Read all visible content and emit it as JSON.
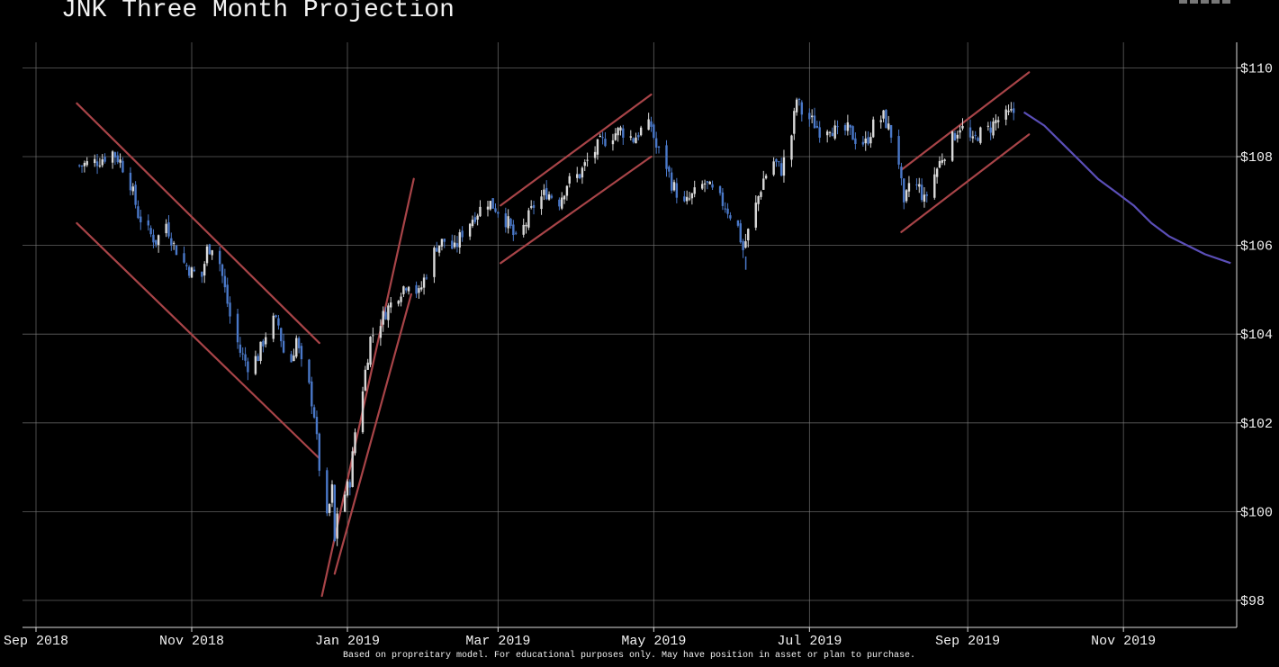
{
  "title": "JNK Three Month Projection",
  "footer": "Based on propreitary model. For educational purposes only. May have position in asset or plan to purchase.",
  "toolbar_icons": [
    "zoom-icon",
    "pan-icon",
    "home-icon",
    "settings-icon",
    "save-icon"
  ],
  "colors": {
    "background": "#000000",
    "up_candle": "#d9d9d9",
    "down_candle": "#4a78c8",
    "trendline": "#a84448",
    "projection": "#5b4fb8",
    "grid": "#808080"
  },
  "chart_data": {
    "type": "candlestick",
    "title": "JNK Three Month Projection",
    "xlabel": "",
    "ylabel": "",
    "x_range": [
      "2018-09-01",
      "2019-12-15"
    ],
    "ylim": [
      97.4,
      110.5
    ],
    "grid": true,
    "y_axis_position": "right",
    "x_ticks": [
      {
        "date": "2018-09-01",
        "label": "Sep 2018"
      },
      {
        "date": "2018-11-01",
        "label": "Nov 2018"
      },
      {
        "date": "2019-01-01",
        "label": "Jan 2019"
      },
      {
        "date": "2019-03-01",
        "label": "Mar 2019"
      },
      {
        "date": "2019-05-01",
        "label": "May 2019"
      },
      {
        "date": "2019-07-01",
        "label": "Jul 2019"
      },
      {
        "date": "2019-09-01",
        "label": "Sep 2019"
      },
      {
        "date": "2019-11-01",
        "label": "Nov 2019"
      }
    ],
    "y_ticks": [
      {
        "value": 98,
        "label": "$98"
      },
      {
        "value": 100,
        "label": "$100"
      },
      {
        "value": 102,
        "label": "$102"
      },
      {
        "value": 104,
        "label": "$104"
      },
      {
        "value": 106,
        "label": "$106"
      },
      {
        "value": 108,
        "label": "$108"
      },
      {
        "value": 110,
        "label": "$110"
      }
    ],
    "price_path": [
      [
        "2018-09-18",
        107.8
      ],
      [
        "2018-09-25",
        107.9
      ],
      [
        "2018-10-01",
        108.1
      ],
      [
        "2018-10-04",
        107.9
      ],
      [
        "2018-10-08",
        107.4
      ],
      [
        "2018-10-11",
        106.7
      ],
      [
        "2018-10-15",
        106.3
      ],
      [
        "2018-10-18",
        106.1
      ],
      [
        "2018-10-22",
        106.5
      ],
      [
        "2018-10-25",
        106.0
      ],
      [
        "2018-10-29",
        105.6
      ],
      [
        "2018-11-01",
        105.4
      ],
      [
        "2018-11-05",
        105.3
      ],
      [
        "2018-11-07",
        105.9
      ],
      [
        "2018-11-09",
        106.0
      ],
      [
        "2018-11-12",
        105.6
      ],
      [
        "2018-11-14",
        105.0
      ],
      [
        "2018-11-16",
        104.4
      ],
      [
        "2018-11-20",
        103.6
      ],
      [
        "2018-11-23",
        103.3
      ],
      [
        "2018-11-27",
        103.5
      ],
      [
        "2018-11-30",
        104.0
      ],
      [
        "2018-12-03",
        104.3
      ],
      [
        "2018-12-05",
        104.2
      ],
      [
        "2018-12-07",
        103.6
      ],
      [
        "2018-12-10",
        103.4
      ],
      [
        "2018-12-12",
        103.9
      ],
      [
        "2018-12-14",
        103.3
      ],
      [
        "2018-12-17",
        102.8
      ],
      [
        "2018-12-19",
        102.2
      ],
      [
        "2018-12-21",
        101.0
      ],
      [
        "2018-12-24",
        99.8
      ],
      [
        "2018-12-26",
        100.5
      ],
      [
        "2018-12-27",
        99.3
      ],
      [
        "2018-12-28",
        100.0
      ],
      [
        "2018-12-31",
        100.4
      ],
      [
        "2019-01-02",
        100.7
      ],
      [
        "2019-01-04",
        101.8
      ],
      [
        "2019-01-07",
        102.8
      ],
      [
        "2019-01-10",
        103.9
      ],
      [
        "2019-01-14",
        104.3
      ],
      [
        "2019-01-17",
        104.6
      ],
      [
        "2019-01-22",
        105.0
      ],
      [
        "2019-01-25",
        105.2
      ],
      [
        "2019-01-29",
        104.9
      ],
      [
        "2019-02-01",
        105.4
      ],
      [
        "2019-02-05",
        106.0
      ],
      [
        "2019-02-08",
        106.1
      ],
      [
        "2019-02-12",
        105.9
      ],
      [
        "2019-02-15",
        106.3
      ],
      [
        "2019-02-20",
        106.7
      ],
      [
        "2019-02-25",
        107.0
      ],
      [
        "2019-03-01",
        106.8
      ],
      [
        "2019-03-05",
        106.5
      ],
      [
        "2019-03-08",
        106.1
      ],
      [
        "2019-03-12",
        106.5
      ],
      [
        "2019-03-15",
        106.9
      ],
      [
        "2019-03-20",
        107.2
      ],
      [
        "2019-03-25",
        107.0
      ],
      [
        "2019-03-28",
        107.4
      ],
      [
        "2019-04-02",
        107.6
      ],
      [
        "2019-04-05",
        107.9
      ],
      [
        "2019-04-10",
        108.3
      ],
      [
        "2019-04-15",
        108.5
      ],
      [
        "2019-04-18",
        108.6
      ],
      [
        "2019-04-23",
        108.4
      ],
      [
        "2019-04-26",
        108.6
      ],
      [
        "2019-04-30",
        108.7
      ],
      [
        "2019-05-02",
        108.2
      ],
      [
        "2019-05-06",
        107.8
      ],
      [
        "2019-05-08",
        107.4
      ],
      [
        "2019-05-13",
        106.9
      ],
      [
        "2019-05-16",
        107.1
      ],
      [
        "2019-05-21",
        107.4
      ],
      [
        "2019-05-24",
        107.2
      ],
      [
        "2019-05-29",
        106.9
      ],
      [
        "2019-06-03",
        106.4
      ],
      [
        "2019-06-05",
        105.9
      ],
      [
        "2019-06-07",
        106.3
      ],
      [
        "2019-06-10",
        106.9
      ],
      [
        "2019-06-13",
        107.5
      ],
      [
        "2019-06-17",
        107.9
      ],
      [
        "2019-06-20",
        107.7
      ],
      [
        "2019-06-24",
        108.5
      ],
      [
        "2019-06-26",
        109.3
      ],
      [
        "2019-06-28",
        109.0
      ],
      [
        "2019-07-02",
        108.8
      ],
      [
        "2019-07-05",
        108.6
      ],
      [
        "2019-07-09",
        108.7
      ],
      [
        "2019-07-12",
        108.5
      ],
      [
        "2019-07-16",
        108.6
      ],
      [
        "2019-07-19",
        108.4
      ],
      [
        "2019-07-23",
        108.3
      ],
      [
        "2019-07-26",
        108.7
      ],
      [
        "2019-07-30",
        108.9
      ],
      [
        "2019-08-02",
        108.5
      ],
      [
        "2019-08-05",
        107.9
      ],
      [
        "2019-08-07",
        106.8
      ],
      [
        "2019-08-09",
        107.4
      ],
      [
        "2019-08-13",
        107.3
      ],
      [
        "2019-08-15",
        107.0
      ],
      [
        "2019-08-19",
        107.6
      ],
      [
        "2019-08-22",
        108.0
      ],
      [
        "2019-08-26",
        108.4
      ],
      [
        "2019-08-29",
        108.7
      ],
      [
        "2019-09-03",
        108.3
      ],
      [
        "2019-09-05",
        108.5
      ],
      [
        "2019-09-09",
        108.6
      ],
      [
        "2019-09-12",
        108.8
      ],
      [
        "2019-09-16",
        108.9
      ],
      [
        "2019-09-19",
        109.0
      ],
      [
        "2019-09-20",
        109.1
      ]
    ],
    "outliers": [
      {
        "date": "2019-06-05",
        "value": 105.6
      }
    ],
    "projection": {
      "label": "projection",
      "points": [
        [
          "2019-09-23",
          109.0
        ],
        [
          "2019-10-01",
          108.7
        ],
        [
          "2019-10-08",
          108.3
        ],
        [
          "2019-10-15",
          107.9
        ],
        [
          "2019-10-22",
          107.5
        ],
        [
          "2019-10-29",
          107.2
        ],
        [
          "2019-11-05",
          106.9
        ],
        [
          "2019-11-12",
          106.5
        ],
        [
          "2019-11-19",
          106.2
        ],
        [
          "2019-11-26",
          106.0
        ],
        [
          "2019-12-03",
          105.8
        ],
        [
          "2019-12-13",
          105.6
        ]
      ]
    },
    "trendlines": [
      {
        "start": [
          "2018-09-17",
          109.2
        ],
        "end": [
          "2018-12-21",
          103.8
        ]
      },
      {
        "start": [
          "2018-09-17",
          106.5
        ],
        "end": [
          "2018-12-21",
          101.2
        ]
      },
      {
        "start": [
          "2018-12-22",
          98.1
        ],
        "end": [
          "2019-01-27",
          107.5
        ]
      },
      {
        "start": [
          "2018-12-27",
          98.6
        ],
        "end": [
          "2019-01-26",
          104.9
        ]
      },
      {
        "start": [
          "2019-03-02",
          106.9
        ],
        "end": [
          "2019-04-30",
          109.4
        ]
      },
      {
        "start": [
          "2019-03-02",
          105.6
        ],
        "end": [
          "2019-04-30",
          108.0
        ]
      },
      {
        "start": [
          "2019-08-06",
          107.7
        ],
        "end": [
          "2019-09-25",
          109.9
        ]
      },
      {
        "start": [
          "2019-08-06",
          106.3
        ],
        "end": [
          "2019-09-25",
          108.5
        ]
      }
    ]
  }
}
